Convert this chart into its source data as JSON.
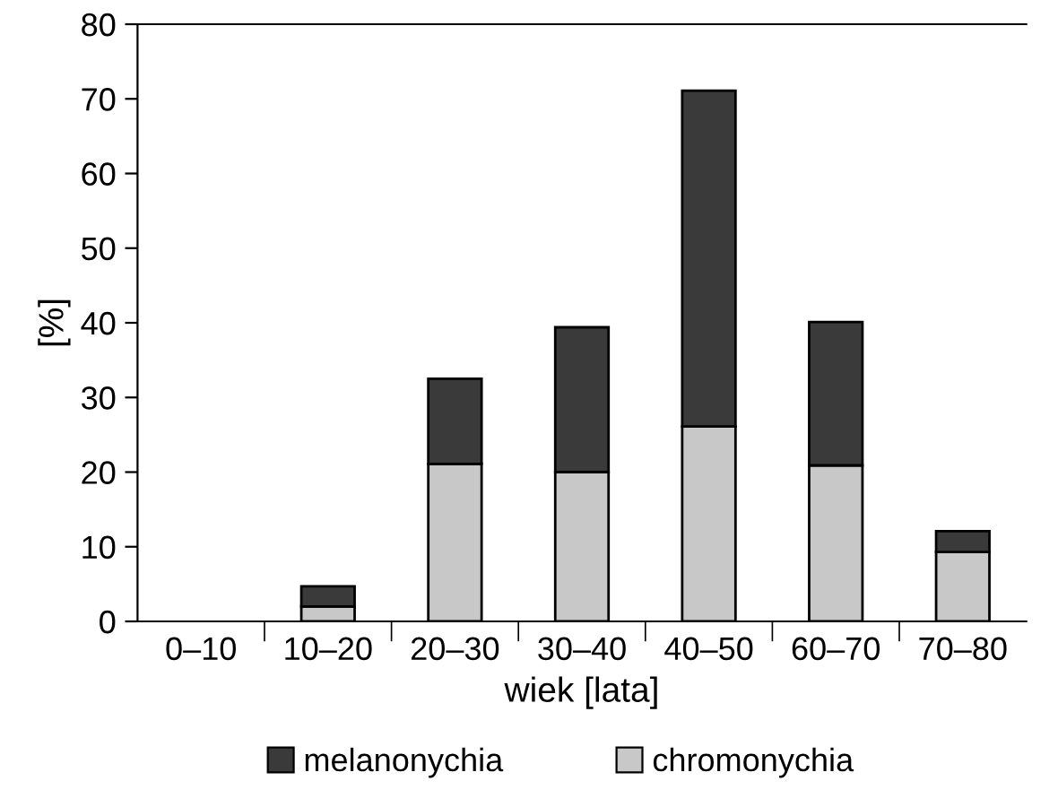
{
  "chart_data": {
    "type": "bar",
    "stacked": true,
    "xlabel": "wiek [lata]",
    "ylabel": "[%]",
    "categories": [
      "0–10",
      "10–20",
      "20–30",
      "30–40",
      "40–50",
      "60–70",
      "70–80"
    ],
    "series": [
      {
        "name": "chromonychia",
        "color": "#c8c8c8",
        "values": [
          0,
          2.0,
          21.1,
          20.0,
          26.1,
          20.9,
          9.3
        ]
      },
      {
        "name": "melanonychia",
        "color": "#3a3a3a",
        "values": [
          0,
          2.7,
          11.4,
          19.4,
          45.0,
          19.2,
          2.8
        ]
      }
    ],
    "ylim": [
      0,
      80
    ],
    "yticks": [
      0,
      10,
      20,
      30,
      40,
      50,
      60,
      70,
      80
    ],
    "grid": false,
    "legend": "bottom"
  }
}
